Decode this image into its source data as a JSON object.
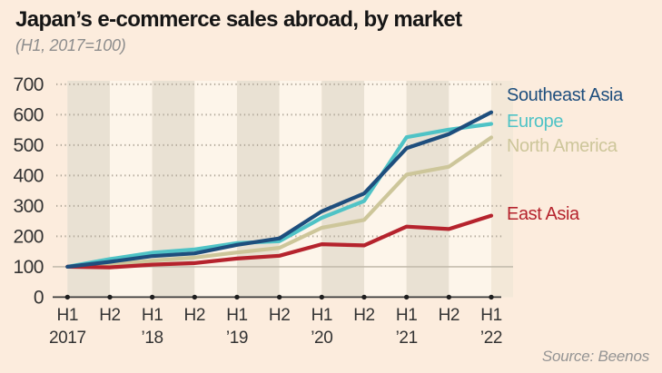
{
  "header": {
    "title": "Japan’s e-commerce sales abroad, by market",
    "subtitle": "(H1, 2017=100)"
  },
  "source": "Source: Beenos",
  "colors": {
    "page_background": "#fcecdd",
    "band_dark": "#e9e1d3",
    "band_light": "#fdf5ea",
    "band_partial": "#f3e8d8",
    "grid_dotted": "#b0a799",
    "grid_baseline_100": "#c4bcae",
    "axis_line": "#3b3b3b",
    "tick_dot": "#1f1f1f",
    "axis_text": "#333333",
    "title_text": "#151515",
    "muted_text": "#8d8d8d"
  },
  "chart_data": {
    "type": "line",
    "title": "Japan’s e-commerce sales abroad, by market",
    "subtitle": "(H1, 2017=100)",
    "x_tick_labels": [
      "H1",
      "H2",
      "H1",
      "H2",
      "H1",
      "H2",
      "H1",
      "H2",
      "H1",
      "H2",
      "H1"
    ],
    "year_labels": [
      {
        "index": 0,
        "label": "2017"
      },
      {
        "index": 2,
        "label": "’18"
      },
      {
        "index": 4,
        "label": "’19"
      },
      {
        "index": 6,
        "label": "’20"
      },
      {
        "index": 8,
        "label": "’21"
      },
      {
        "index": 10,
        "label": "’22"
      }
    ],
    "ylim": [
      0,
      700
    ],
    "yticks": [
      0,
      100,
      200,
      300,
      400,
      500,
      600,
      700
    ],
    "baseline_value": 100,
    "grid": "dotted-horizontal",
    "legend_position": "right",
    "series": [
      {
        "name": "North America",
        "color": "#cdc69a",
        "values": [
          100,
          106,
          120,
          130,
          147,
          162,
          228,
          254,
          403,
          429,
          525
        ]
      },
      {
        "name": "Europe",
        "color": "#4fc3c6",
        "values": [
          100,
          125,
          146,
          157,
          178,
          184,
          261,
          316,
          526,
          551,
          570
        ]
      },
      {
        "name": "East Asia",
        "color": "#b5232d",
        "values": [
          100,
          98,
          107,
          112,
          127,
          136,
          174,
          170,
          232,
          224,
          268
        ]
      },
      {
        "name": "Southeast Asia",
        "color": "#1e4e7d",
        "values": [
          100,
          116,
          135,
          144,
          172,
          193,
          282,
          341,
          490,
          536,
          608
        ]
      }
    ],
    "legend": [
      {
        "series": "Southeast Asia",
        "top": 94
      },
      {
        "series": "Europe",
        "top": 123
      },
      {
        "series": "North America",
        "top": 150
      },
      {
        "series": "East Asia",
        "top": 225
      }
    ]
  }
}
